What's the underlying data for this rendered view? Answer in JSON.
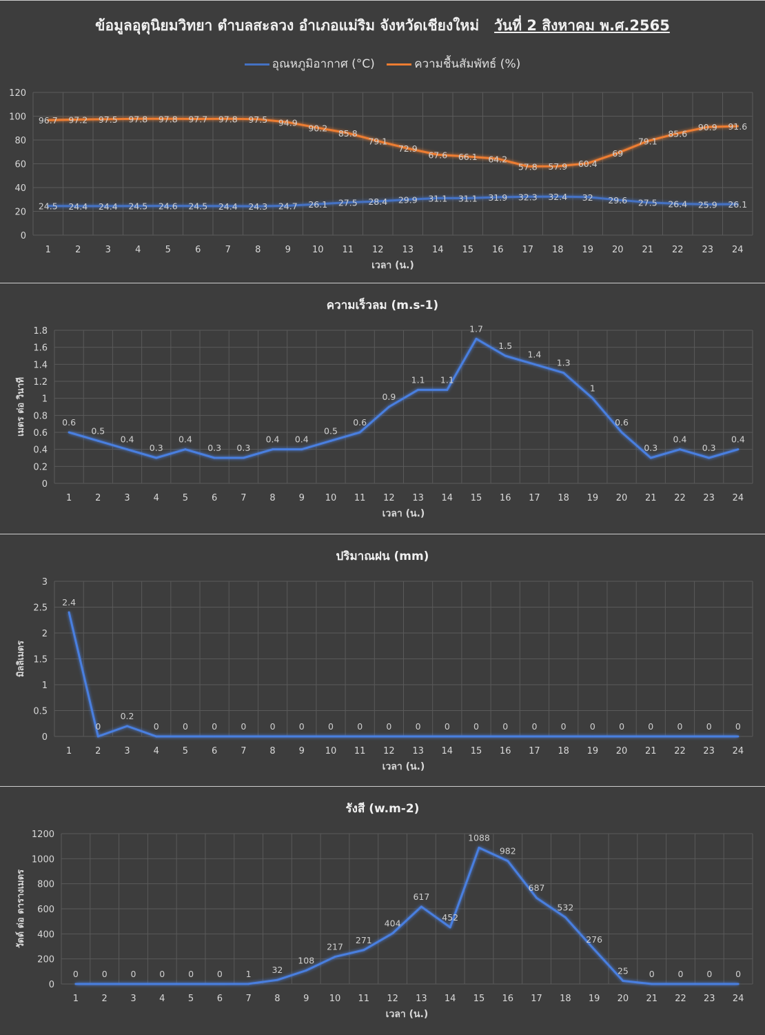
{
  "charts": {
    "c1": {
      "title_main": "ข้อมูลอุตุนิยมวิทยา  ตำบลสะลวง  อำเภอแม่ริม  จังหวัดเชียงใหม่",
      "title_date": "วันที่ 2 สิงหาคม พ.ศ.2565",
      "xlabel": "เวลา (น.)",
      "ylabel": "",
      "legend_temp": "อุณหภูมิอากาศ (°C)",
      "legend_rh": "ความชื้นสัมพัทธ์ (%)"
    },
    "c2": {
      "title": "ความเร็วลม (m.s-1)",
      "xlabel": "เวลา (น.)",
      "ylabel": "เมตร ต่อ วินาที"
    },
    "c3": {
      "title": "ปริมาณฝน (mm)",
      "xlabel": "เวลา (น.)",
      "ylabel": "มิลลิเมตร"
    },
    "c4": {
      "title": "รังสี (w.m-2)",
      "xlabel": "เวลา (น.)",
      "ylabel": "วัตต์ ต่อ ตารางเมตร"
    }
  },
  "colors": {
    "temp": "#4472c4",
    "rh": "#ed7d31",
    "line": "#4a7fe0"
  },
  "chart_data": [
    {
      "type": "line",
      "title": "ข้อมูลอุตุนิยมวิทยา  ตำบลสะลวง  อำเภอแม่ริม  จังหวัดเชียงใหม่  วันที่ 2 สิงหาคม พ.ศ.2565",
      "xlabel": "เวลา (น.)",
      "ylabel": "",
      "x": [
        1,
        2,
        3,
        4,
        5,
        6,
        7,
        8,
        9,
        10,
        11,
        12,
        13,
        14,
        15,
        16,
        17,
        18,
        19,
        20,
        21,
        22,
        23,
        24
      ],
      "ylim": [
        0,
        120
      ],
      "yticks": [
        0,
        20,
        40,
        60,
        80,
        100,
        120
      ],
      "grid": true,
      "legend": "top",
      "series": [
        {
          "name": "อุณหภูมิอากาศ (°C)",
          "values": [
            24.5,
            24.4,
            24.4,
            24.5,
            24.6,
            24.5,
            24.4,
            24.3,
            24.7,
            26.1,
            27.5,
            28.4,
            29.9,
            31.1,
            31.1,
            31.9,
            32.3,
            32.4,
            32,
            29.6,
            27.5,
            26.4,
            25.9,
            26.1
          ]
        },
        {
          "name": "ความชื้นสัมพัทธ์ (%)",
          "values": [
            96.7,
            97.2,
            97.5,
            97.8,
            97.8,
            97.7,
            97.8,
            97.5,
            94.9,
            90.2,
            85.8,
            79.1,
            72.9,
            67.6,
            66.1,
            64.2,
            57.8,
            57.9,
            60.4,
            69,
            79.1,
            85.6,
            90.9,
            91.6
          ]
        }
      ]
    },
    {
      "type": "line",
      "title": "ความเร็วลม (m.s-1)",
      "xlabel": "เวลา (น.)",
      "ylabel": "เมตร ต่อ วินาที",
      "x": [
        1,
        2,
        3,
        4,
        5,
        6,
        7,
        8,
        9,
        10,
        11,
        12,
        13,
        14,
        15,
        16,
        17,
        18,
        19,
        20,
        21,
        22,
        23,
        24
      ],
      "ylim": [
        0,
        1.8
      ],
      "yticks": [
        0,
        0.2,
        0.4,
        0.6,
        0.8,
        1,
        1.2,
        1.4,
        1.6,
        1.8
      ],
      "grid": true,
      "values": [
        0.6,
        0.5,
        0.4,
        0.3,
        0.4,
        0.3,
        0.3,
        0.4,
        0.4,
        0.5,
        0.6,
        0.9,
        1.1,
        1.1,
        1.7,
        1.5,
        1.4,
        1.3,
        1,
        0.6,
        0.3,
        0.4,
        0.3,
        0.4
      ]
    },
    {
      "type": "line",
      "title": "ปริมาณฝน (mm)",
      "xlabel": "เวลา (น.)",
      "ylabel": "มิลลิเมตร",
      "x": [
        1,
        2,
        3,
        4,
        5,
        6,
        7,
        8,
        9,
        10,
        11,
        12,
        13,
        14,
        15,
        16,
        17,
        18,
        19,
        20,
        21,
        22,
        23,
        24
      ],
      "ylim": [
        0,
        3
      ],
      "yticks": [
        0,
        0.5,
        1,
        1.5,
        2,
        2.5,
        3
      ],
      "grid": true,
      "values": [
        2.4,
        0,
        0.2,
        0,
        0,
        0,
        0,
        0,
        0,
        0,
        0,
        0,
        0,
        0,
        0,
        0,
        0,
        0,
        0,
        0,
        0,
        0,
        0,
        0
      ]
    },
    {
      "type": "line",
      "title": "รังสี (w.m-2)",
      "xlabel": "เวลา (น.)",
      "ylabel": "วัตต์ ต่อ ตารางเมตร",
      "x": [
        1,
        2,
        3,
        4,
        5,
        6,
        7,
        8,
        9,
        10,
        11,
        12,
        13,
        14,
        15,
        16,
        17,
        18,
        19,
        20,
        21,
        22,
        23,
        24
      ],
      "ylim": [
        0,
        1200
      ],
      "yticks": [
        0,
        200,
        400,
        600,
        800,
        1000,
        1200
      ],
      "grid": true,
      "values": [
        0,
        0,
        0,
        0,
        0,
        0,
        1,
        32,
        108,
        217,
        271,
        404,
        617,
        452,
        1088,
        982,
        687,
        532,
        276,
        25,
        0,
        0,
        0,
        0
      ]
    }
  ]
}
